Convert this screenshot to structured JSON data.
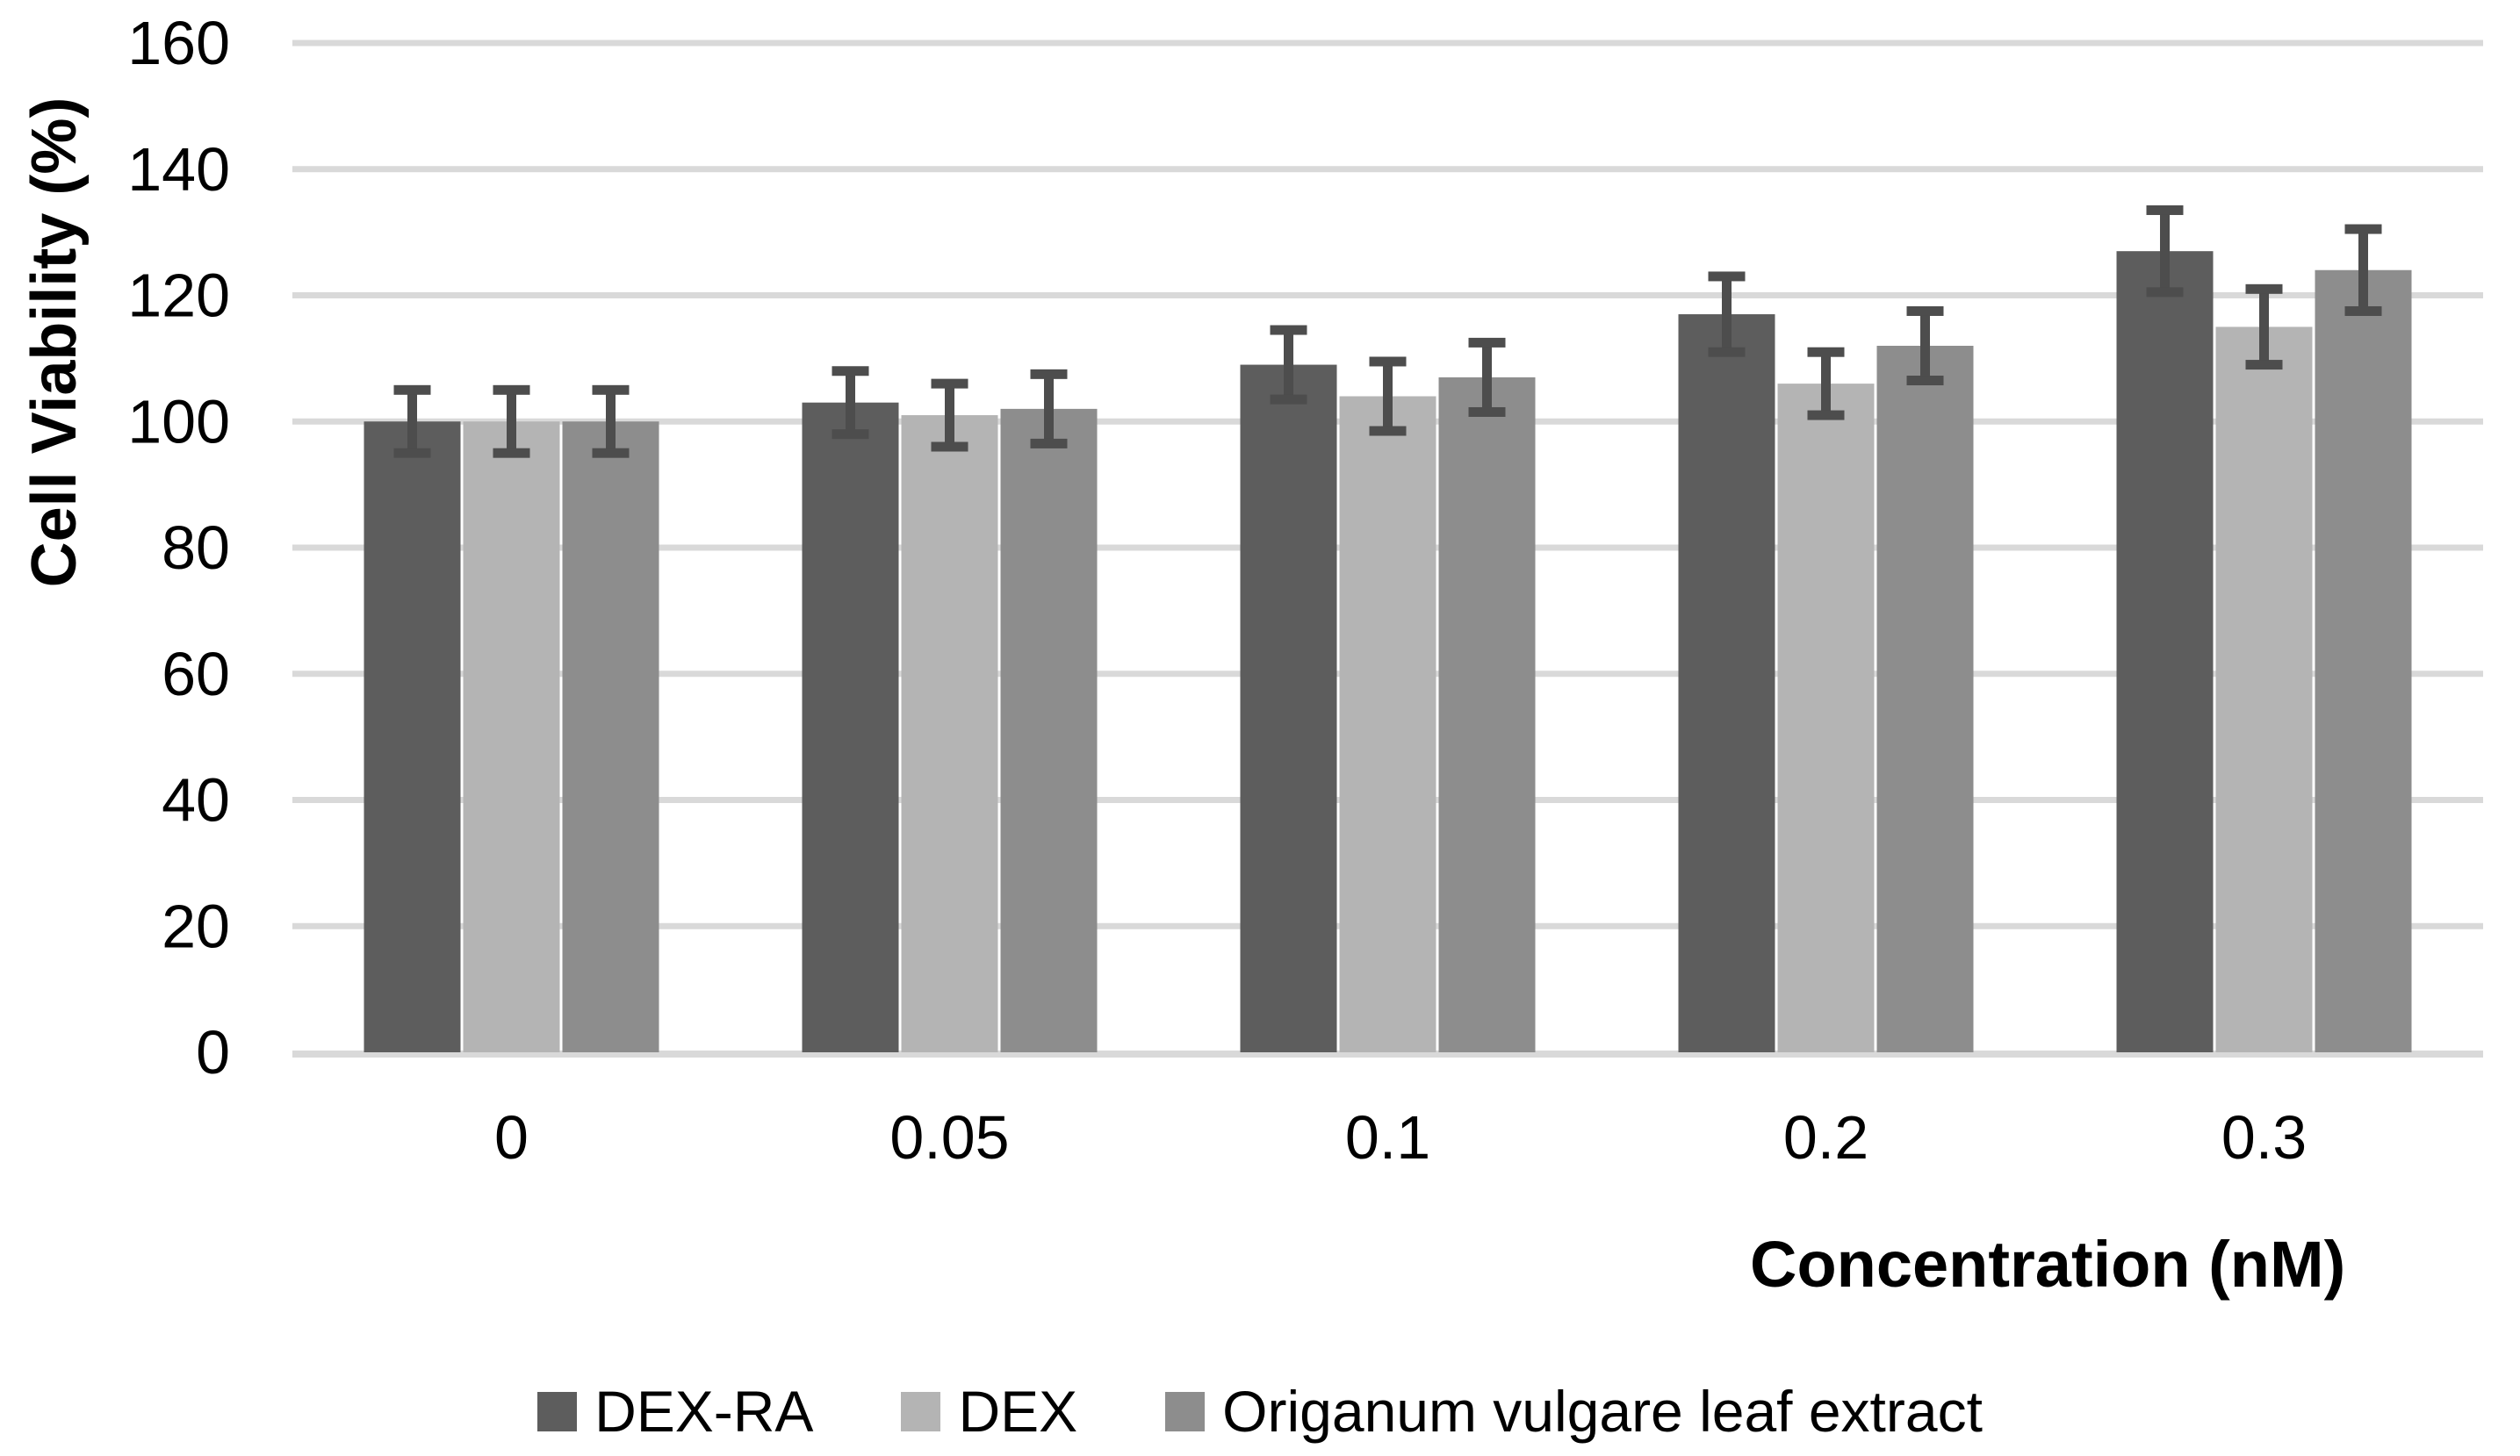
{
  "chart_data": {
    "type": "bar",
    "title": "",
    "xlabel": "Concentration (nM)",
    "ylabel": "Cell Viability (%)",
    "categories": [
      "0",
      "0.05",
      "0.1",
      "0.2",
      "0.3"
    ],
    "series": [
      {
        "name": "DEX-RA",
        "color": "#5d5d5d",
        "values": [
          100,
          103,
          109,
          117,
          127
        ],
        "errors": [
          5,
          5,
          5.5,
          6,
          6.5
        ]
      },
      {
        "name": "DEX",
        "color": "#b4b4b4",
        "values": [
          100,
          101,
          104,
          106,
          115
        ],
        "errors": [
          5,
          5,
          5.5,
          5,
          6
        ]
      },
      {
        "name": "Origanum vulgare leaf extract",
        "color": "#8d8d8d",
        "values": [
          100,
          102,
          107,
          112,
          124
        ],
        "errors": [
          5,
          5.5,
          5.5,
          5.5,
          6.5
        ]
      }
    ],
    "ylim": [
      0,
      160
    ],
    "ytick_step": 20,
    "yticks": [
      0,
      20,
      40,
      60,
      80,
      100,
      120,
      140,
      160
    ],
    "grid": true,
    "gridline_color": "#d9d9d9",
    "error_bar_color": "#4d4d4d",
    "text_color": "#000000",
    "background_color": "#ffffff",
    "legend_position": "bottom"
  }
}
